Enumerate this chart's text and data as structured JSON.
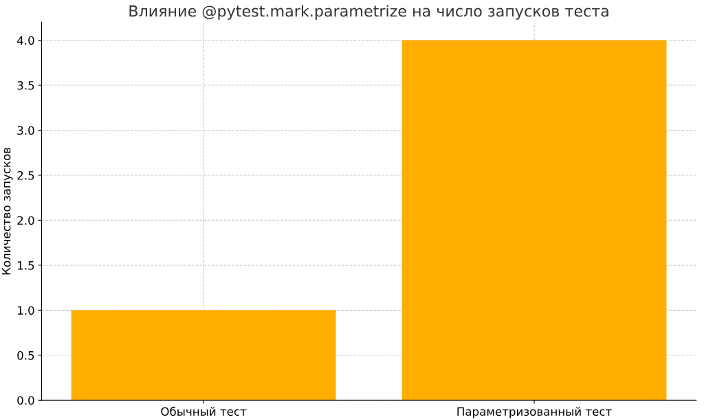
{
  "chart_data": {
    "type": "bar",
    "title": "Влияние @pytest.mark.parametrize на число запусков теста",
    "ylabel": "Количество запусков",
    "categories": [
      "Обычный тест",
      "Параметризованный тест"
    ],
    "values": [
      1,
      4
    ],
    "color": "#ffae00",
    "ylim": [
      0,
      4.2
    ],
    "yticks": [
      {
        "value": 0,
        "label": "0.0"
      },
      0.5,
      {
        "value": 1,
        "label": "1.0"
      },
      1.5,
      {
        "value": 2,
        "label": "2.0"
      },
      2.5,
      {
        "value": 3,
        "label": "3.0"
      },
      3.5,
      {
        "value": 4,
        "label": "4.0"
      }
    ],
    "grid": true
  }
}
